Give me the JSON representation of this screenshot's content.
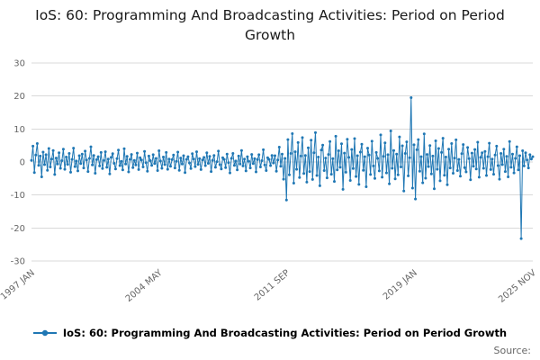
{
  "footer": {
    "source_label": "Source:"
  },
  "chart_data": {
    "type": "line",
    "title": "IoS: 60: Programming And Broadcasting Activities: Period on Period Growth",
    "xlabel": "",
    "ylabel": "",
    "ylim": [
      -30,
      30
    ],
    "y_ticks": [
      30,
      20,
      10,
      0,
      -10,
      -20,
      -30
    ],
    "x_ticks": [
      {
        "label": "1997 JAN",
        "index": 0
      },
      {
        "label": "2004 MAY",
        "index": 88
      },
      {
        "label": "2011 SEP",
        "index": 176
      },
      {
        "label": "2019 JAN",
        "index": 264
      },
      {
        "label": "2025 NOV",
        "index": 346
      }
    ],
    "x_range": [
      "1997 JAN",
      "2025 NOV"
    ],
    "grid": "horizontal",
    "legend_position": "bottom",
    "series": [
      {
        "name": "IoS: 60: Programming And Broadcasting Activities: Period on Period Growth",
        "color": "#1f77b4",
        "marker": "circle",
        "values": [
          0.5,
          4.8,
          -3.2,
          2.1,
          5.6,
          -1.0,
          1.8,
          -4.5,
          3.0,
          -0.8,
          2.2,
          -2.5,
          4.1,
          -1.5,
          0.9,
          3.5,
          -3.8,
          1.2,
          -0.6,
          2.8,
          -1.9,
          0.4,
          3.9,
          -2.2,
          1.5,
          -0.7,
          2.6,
          -3.1,
          0.8,
          4.2,
          -1.4,
          0.3,
          -2.7,
          1.9,
          -0.5,
          2.4,
          -1.8,
          3.3,
          0.6,
          -2.9,
          1.1,
          4.6,
          -0.9,
          2.0,
          -3.4,
          0.7,
          1.6,
          -1.2,
          2.9,
          -2.0,
          0.5,
          3.1,
          -1.6,
          0.9,
          -3.6,
          1.4,
          2.5,
          -0.4,
          -2.1,
          1.0,
          3.6,
          -1.1,
          0.2,
          -2.4,
          4.0,
          -0.6,
          1.7,
          -3.0,
          0.8,
          2.3,
          -1.7,
          0.5,
          -0.9,
          2.7,
          -2.3,
          1.3,
          0.6,
          -1.5,
          3.2,
          -0.2,
          -2.8,
          1.8,
          0.4,
          -1.0,
          2.2,
          -0.5,
          1.1,
          -2.6,
          3.4,
          0.3,
          -1.9,
          1.5,
          -0.8,
          2.9,
          -2.2,
          0.9,
          -1.3,
          0.7,
          2.1,
          -1.8,
          0.2,
          3.0,
          -2.5,
          1.2,
          -0.6,
          1.9,
          -3.2,
          0.8,
          1.6,
          -0.3,
          -2.0,
          2.5,
          0.9,
          -1.4,
          3.1,
          -0.7,
          1.0,
          -2.3,
          0.6,
          1.4,
          -1.1,
          2.8,
          -0.4,
          1.7,
          -2.9,
          0.5,
          2.0,
          -1.6,
          0.1,
          3.3,
          -0.8,
          -2.1,
          1.3,
          0.8,
          -1.7,
          2.4,
          -0.2,
          -3.3,
          1.1,
          2.6,
          -1.0,
          0.3,
          -2.4,
          1.8,
          -0.6,
          3.5,
          -1.2,
          0.9,
          -2.7,
          1.6,
          0.2,
          -1.8,
          2.3,
          -0.5,
          1.0,
          -3.0,
          0.7,
          2.2,
          -1.5,
          0.4,
          3.7,
          -0.9,
          -2.6,
          1.3,
          0.8,
          -1.1,
          2.0,
          -0.3,
          1.9,
          -2.8,
          0.6,
          4.5,
          -1.3,
          2.4,
          -5.2,
          1.1,
          -11.5,
          6.8,
          -3.9,
          2.6,
          8.6,
          -6.4,
          3.1,
          -2.2,
          5.9,
          -4.7,
          1.8,
          7.4,
          -3.5,
          2.0,
          -6.1,
          4.3,
          -2.9,
          6.6,
          -5.3,
          2.8,
          8.9,
          -4.1,
          1.5,
          -7.2,
          3.6,
          5.1,
          -2.6,
          1.2,
          -4.8,
          2.3,
          6.2,
          -3.7,
          1.0,
          -5.9,
          7.8,
          -2.4,
          3.4,
          -1.6,
          5.5,
          -8.3,
          2.7,
          -3.1,
          6.9,
          1.4,
          -5.6,
          3.8,
          -2.0,
          7.1,
          -4.4,
          1.9,
          -6.8,
          3.0,
          5.4,
          -2.5,
          1.6,
          -7.5,
          4.2,
          2.1,
          -3.8,
          6.3,
          -1.2,
          -5.0,
          2.9,
          1.1,
          -2.7,
          8.2,
          -4.6,
          1.7,
          5.8,
          -3.3,
          2.2,
          -6.6,
          9.4,
          -1.9,
          3.5,
          -5.1,
          2.4,
          -3.9,
          7.6,
          -1.5,
          4.9,
          -8.8,
          2.6,
          6.1,
          -4.2,
          1.3,
          19.5,
          -7.9,
          5.2,
          -11.2,
          3.7,
          6.8,
          -2.8,
          1.6,
          -6.3,
          8.5,
          -4.9,
          2.3,
          -1.4,
          5.0,
          -3.6,
          1.8,
          -8.1,
          6.4,
          -2.2,
          4.1,
          -5.7,
          2.9,
          7.2,
          -4.0,
          1.5,
          -6.9,
          3.9,
          -1.8,
          5.6,
          -3.4,
          1.2,
          6.7,
          -2.6,
          0.8,
          -4.3,
          2.5,
          5.3,
          -1.7,
          -3.0,
          4.4,
          1.0,
          -5.4,
          2.7,
          -1.3,
          3.8,
          -2.1,
          6.0,
          -4.6,
          1.4,
          2.8,
          -1.9,
          3.2,
          -4.1,
          1.6,
          5.7,
          -2.3,
          0.9,
          -3.7,
          2.1,
          4.8,
          -1.1,
          -5.2,
          2.6,
          -0.8,
          3.9,
          -2.9,
          1.7,
          -4.5,
          6.2,
          -1.6,
          2.4,
          -3.3,
          1.1,
          4.6,
          -2.4,
          1.9,
          -23.2,
          3.4,
          -1.2,
          2.8,
          0.6,
          -1.8,
          2.2,
          0.9,
          1.6
        ]
      }
    ]
  }
}
